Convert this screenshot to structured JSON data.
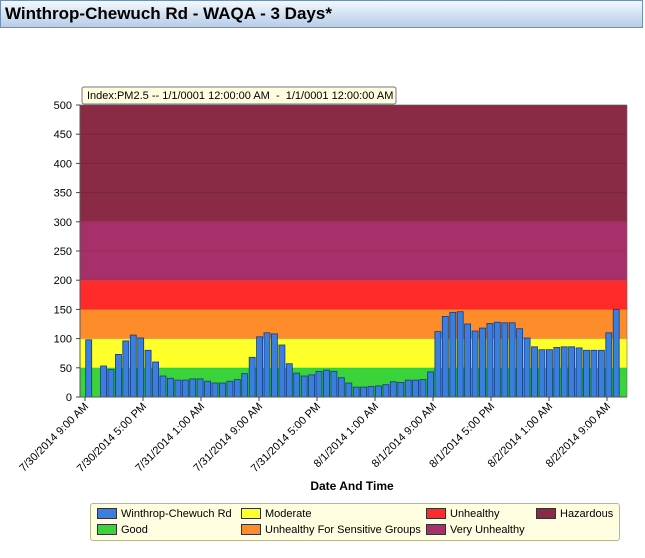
{
  "header": {
    "title": "Winthrop-Chewuch Rd - WAQA - 3 Days*"
  },
  "tooltip": {
    "text": "Index:PM2.5 -- 1/1/0001 12:00:00 AM  -  1/1/0001 12:00:00 AM"
  },
  "chart_data": {
    "type": "bar",
    "xlabel": "Date And Time",
    "ylabel": "",
    "ylim": [
      0,
      500
    ],
    "yticks": [
      0,
      50,
      100,
      150,
      200,
      250,
      300,
      350,
      400,
      450,
      500
    ],
    "xticks": [
      "7/30/2014 9:00 AM",
      "7/30/2014 5:00 PM",
      "7/31/2014 1:00 AM",
      "7/31/2014 9:00 AM",
      "7/31/2014 5:00 PM",
      "8/1/2014 1:00 AM",
      "8/1/2014 9:00 AM",
      "8/1/2014 5:00 PM",
      "8/2/2014 1:00 AM",
      "8/2/2014 9:00 AM"
    ],
    "series": [
      {
        "name": "Winthrop-Chewuch Rd",
        "color": "#3a7fe0",
        "values": [
          98,
          0,
          53,
          47,
          73,
          96,
          106,
          101,
          80,
          60,
          36,
          32,
          29,
          29,
          31,
          31,
          27,
          24,
          24,
          27,
          30,
          40,
          68,
          103,
          110,
          108,
          89,
          57,
          41,
          36,
          38,
          44,
          46,
          44,
          33,
          24,
          17,
          17,
          18,
          19,
          21,
          26,
          25,
          29,
          29,
          30,
          43,
          112,
          138,
          145,
          146,
          125,
          113,
          118,
          126,
          128,
          127,
          127,
          117,
          101,
          86,
          81,
          81,
          85,
          86,
          86,
          84,
          80,
          80,
          80,
          110,
          150
        ]
      }
    ],
    "aqi_bands": [
      {
        "name": "Good",
        "from": 0,
        "to": 50,
        "color": "#3ad43a"
      },
      {
        "name": "Moderate",
        "from": 50,
        "to": 100,
        "color": "#ffff2a"
      },
      {
        "name": "Unhealthy For Sensitive Groups",
        "from": 100,
        "to": 150,
        "color": "#ff8c2a"
      },
      {
        "name": "Unhealthy",
        "from": 150,
        "to": 200,
        "color": "#ff2a2a"
      },
      {
        "name": "Very Unhealthy",
        "from": 200,
        "to": 300,
        "color": "#a8306a"
      },
      {
        "name": "Hazardous",
        "from": 300,
        "to": 500,
        "color": "#8a2a45"
      }
    ],
    "legend": {
      "position": "bottom",
      "items": [
        {
          "label": "Winthrop-Chewuch Rd",
          "color": "#3a7fe0"
        },
        {
          "label": "Moderate",
          "color": "#ffff2a"
        },
        {
          "label": "Unhealthy",
          "color": "#ff2a2a"
        },
        {
          "label": "Hazardous",
          "color": "#8a2a45"
        },
        {
          "label": "Good",
          "color": "#3ad43a"
        },
        {
          "label": "Unhealthy For Sensitive Groups",
          "color": "#ff8c2a"
        },
        {
          "label": "Very Unhealthy",
          "color": "#a8306a"
        }
      ]
    }
  }
}
